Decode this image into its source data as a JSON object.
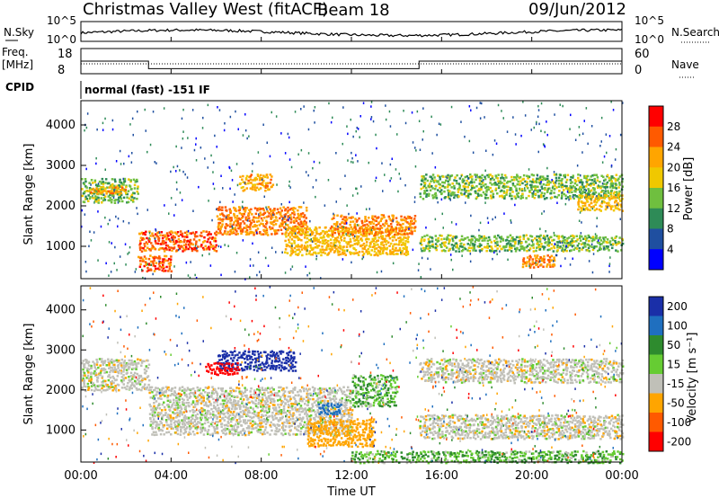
{
  "header": {
    "title": "Christmas Valley West (fitACF)",
    "beam": "Beam 18",
    "date": "09/Jun/2012"
  },
  "top_panels": {
    "nsky_label": "N.Sky",
    "nsky_ticks": [
      "10^5",
      "10^0"
    ],
    "nsearch_label": "N.Search",
    "freq_label_1": "Freq.",
    "freq_label_2": "[MHz]",
    "freq_ticks": [
      "18",
      "8"
    ],
    "nave_ticks": [
      "60",
      "0"
    ],
    "nave_label": "Nave",
    "cpid_label": "CPID",
    "cpid_value": "normal (fast) -151 IF"
  },
  "power_panel": {
    "ylabel": "Slant Range [km]",
    "yticks": [
      "4000",
      "3000",
      "2000",
      "1000"
    ],
    "colorbar_label": "Power [dB]",
    "colorbar_ticks": [
      "28",
      "24",
      "20",
      "16",
      "12",
      "8",
      "4"
    ],
    "colorbar_colors": [
      "#ff0000",
      "#ff5a00",
      "#ffa500",
      "#f0c800",
      "#6fbf3f",
      "#2e8b57",
      "#1f4fa0",
      "#0000ff"
    ]
  },
  "velocity_panel": {
    "ylabel": "Slant Range [km]",
    "yticks": [
      "4000",
      "3000",
      "2000",
      "1000"
    ],
    "colorbar_label": "Velocity [m s⁻¹]",
    "colorbar_ticks": [
      "200",
      "100",
      "50",
      "15",
      "-15",
      "-50",
      "-100",
      "-200"
    ],
    "colorbar_colors": [
      "#1a2fa8",
      "#1f6fbf",
      "#2e8b2e",
      "#66cc33",
      "#c0c0b8",
      "#ffa500",
      "#ff5a00",
      "#ff0000"
    ]
  },
  "x_axis": {
    "ticks": [
      "00:00",
      "04:00",
      "08:00",
      "12:00",
      "16:00",
      "20:00",
      "00:00"
    ],
    "label": "Time UT"
  },
  "chart_data": {
    "type": "heatmap",
    "title": "Christmas Valley West (fitACF)",
    "xlabel": "Time UT",
    "xlim_hours": [
      0,
      24
    ],
    "ylabel": "Slant Range [km]",
    "ylim_km": [
      200,
      4600
    ],
    "freq_mhz_segments": [
      {
        "start_h": 0,
        "end_h": 3,
        "value": 13
      },
      {
        "start_h": 3,
        "end_h": 15,
        "value": 10
      },
      {
        "start_h": 15,
        "end_h": 24,
        "value": 13
      }
    ],
    "power_features": [
      {
        "t0": 0.0,
        "t1": 2.5,
        "r0": 2100,
        "r1": 2700,
        "db": 14
      },
      {
        "t0": 0.2,
        "t1": 2.0,
        "r0": 2300,
        "r1": 2500,
        "db": 22
      },
      {
        "t0": 2.5,
        "t1": 6.0,
        "r0": 900,
        "r1": 1400,
        "db": 26
      },
      {
        "t0": 6.0,
        "t1": 10.0,
        "r0": 1300,
        "r1": 2000,
        "db": 24
      },
      {
        "t0": 2.5,
        "t1": 4.0,
        "r0": 400,
        "r1": 800,
        "db": 26
      },
      {
        "t0": 7.0,
        "t1": 8.5,
        "r0": 2400,
        "r1": 2800,
        "db": 22
      },
      {
        "t0": 9.0,
        "t1": 14.5,
        "r0": 800,
        "r1": 1500,
        "db": 20
      },
      {
        "t0": 11.0,
        "t1": 14.8,
        "r0": 1300,
        "r1": 1800,
        "db": 24
      },
      {
        "t0": 15.0,
        "t1": 24.0,
        "r0": 2200,
        "r1": 2800,
        "db": 14
      },
      {
        "t0": 15.0,
        "t1": 24.0,
        "r0": 900,
        "r1": 1300,
        "db": 14
      },
      {
        "t0": 22.0,
        "t1": 24.0,
        "r0": 1900,
        "r1": 2300,
        "db": 20
      },
      {
        "t0": 19.5,
        "t1": 21.0,
        "r0": 500,
        "r1": 800,
        "db": 24
      }
    ],
    "velocity_features": [
      {
        "t0": 0.0,
        "t1": 3.0,
        "r0": 2000,
        "r1": 2800,
        "v": 0
      },
      {
        "t0": 3.0,
        "t1": 12.0,
        "r0": 900,
        "r1": 2100,
        "v": 0
      },
      {
        "t0": 6.0,
        "t1": 9.5,
        "r0": 2500,
        "r1": 3000,
        "v": 200
      },
      {
        "t0": 5.5,
        "t1": 7.0,
        "r0": 2400,
        "r1": 2700,
        "v": -200
      },
      {
        "t0": 10.0,
        "t1": 13.0,
        "r0": 600,
        "r1": 1300,
        "v": -50
      },
      {
        "t0": 10.5,
        "t1": 11.5,
        "r0": 1400,
        "r1": 1700,
        "v": 100
      },
      {
        "t0": 12.0,
        "t1": 14.0,
        "r0": 1600,
        "r1": 2400,
        "v": 30
      },
      {
        "t0": 15.0,
        "t1": 24.0,
        "r0": 2200,
        "r1": 2800,
        "v": 0
      },
      {
        "t0": 15.0,
        "t1": 24.0,
        "r0": 800,
        "r1": 1400,
        "v": 0
      },
      {
        "t0": 12.0,
        "t1": 24.0,
        "r0": 200,
        "r1": 500,
        "v": 30
      }
    ]
  }
}
